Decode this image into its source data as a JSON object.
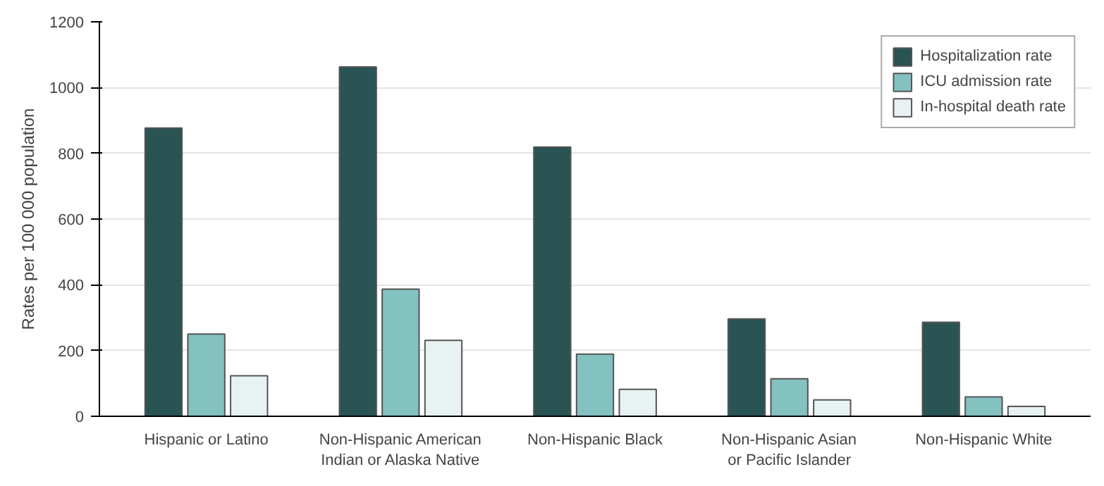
{
  "chart_data": {
    "type": "bar",
    "ylabel": "Rates per 100 000 population",
    "categories": [
      "Hispanic or Latino",
      "Non-Hispanic American\nIndian or Alaska Native",
      "Non-Hispanic Black",
      "Non-Hispanic Asian\nor Pacific Islander",
      "Non-Hispanic White"
    ],
    "series": [
      {
        "name": "Hospitalization rate",
        "color": "#2a5454",
        "values": [
          877,
          1063,
          819,
          296,
          286
        ]
      },
      {
        "name": "ICU admission rate",
        "color": "#84c1c1",
        "values": [
          250,
          387,
          189,
          114,
          59
        ]
      },
      {
        "name": "In-hospital death rate",
        "color": "#e8f2f2",
        "values": [
          123,
          231,
          82,
          50,
          30
        ]
      }
    ],
    "ylim": [
      0,
      1200
    ],
    "yticks": [
      0,
      200,
      400,
      600,
      800,
      1000,
      1200
    ],
    "grid": "y",
    "legend": "top right"
  }
}
